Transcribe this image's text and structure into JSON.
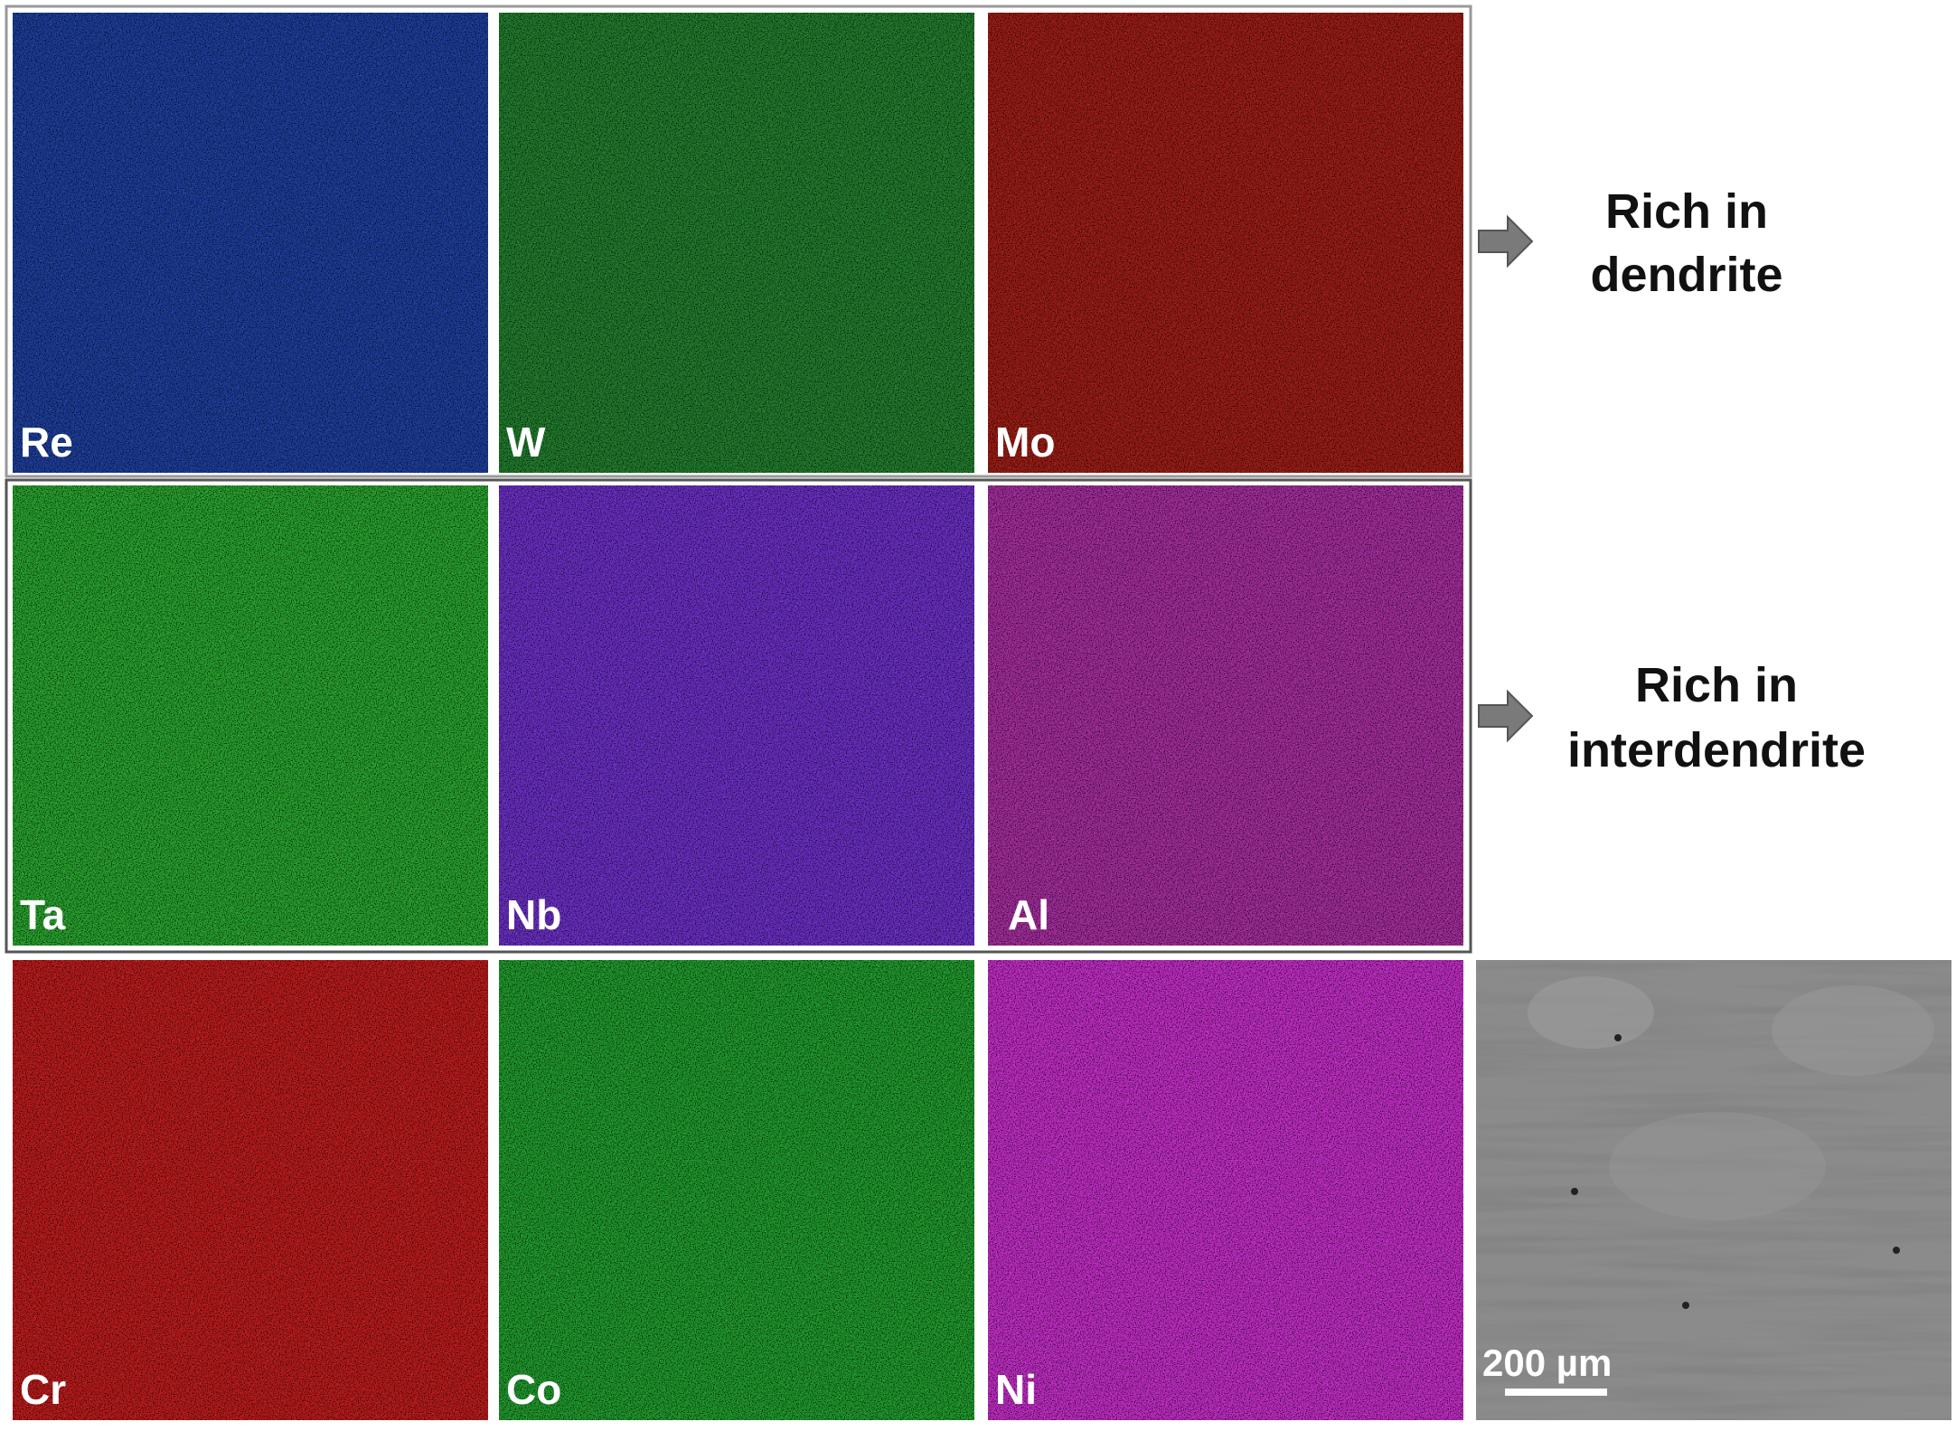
{
  "rows": [
    {
      "panels": [
        {
          "label": "Re"
        },
        {
          "label": "W"
        },
        {
          "label": "Mo"
        }
      ]
    },
    {
      "panels": [
        {
          "label": "Ta"
        },
        {
          "label": "Nb"
        },
        {
          "label": "Al"
        }
      ]
    },
    {
      "panels": [
        {
          "label": "Cr"
        },
        {
          "label": "Co"
        },
        {
          "label": "Ni"
        }
      ]
    }
  ],
  "annotations": [
    {
      "lines": [
        "Rich in",
        "dendrite"
      ]
    },
    {
      "lines": [
        "Rich in",
        "interdendrite"
      ]
    }
  ],
  "scale_bar": {
    "label": "200 µm"
  }
}
